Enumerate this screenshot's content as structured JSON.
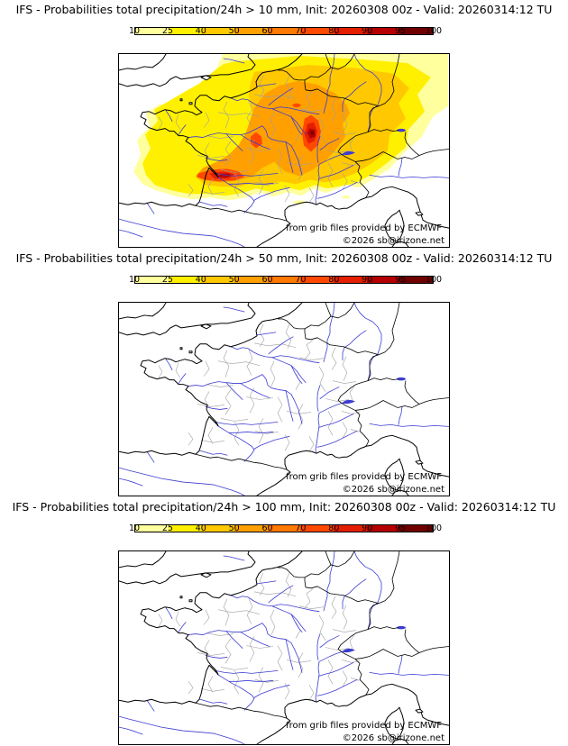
{
  "colorbar": {
    "ticks": [
      "10",
      "25",
      "40",
      "50",
      "60",
      "70",
      "80",
      "90",
      "95",
      "100"
    ],
    "colors": [
      "#ffff9e",
      "#fff000",
      "#ffc800",
      "#ffa000",
      "#ff7800",
      "#ff4800",
      "#e41e00",
      "#b40000",
      "#700000"
    ]
  },
  "panels": [
    {
      "title": "IFS - Probabilities total precipitation/24h > 10 mm, Init: 20260308 00z - Valid: 20260314:12 TU",
      "overlay": true
    },
    {
      "title": "IFS - Probabilities total precipitation/24h > 50 mm, Init: 20260308 00z - Valid: 20260314:12 TU",
      "overlay": false
    },
    {
      "title": "IFS - Probabilities total precipitation/24h > 100 mm, Init: 20260308 00z - Valid: 20260314:12 TU",
      "overlay": false
    }
  ],
  "map": {
    "credit": "from grib files provided by ECMWF",
    "copyright": "©2026 sb@irizone.net"
  }
}
